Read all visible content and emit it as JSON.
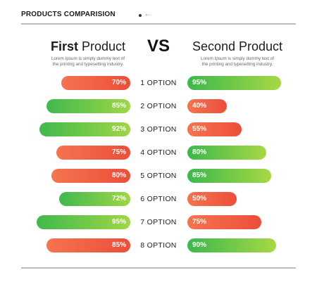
{
  "header": {
    "title": "PRODUCTS COMPARISION"
  },
  "vs_label": "VS",
  "first": {
    "title_bold": "First",
    "title_rest": "Product",
    "desc_line1": "Lorem Ipsum is simply dummy text of",
    "desc_line2": "the printing and typesetting industry."
  },
  "second": {
    "title": "Second Product",
    "desc_line1": "Lorem Ipsum is simply dummy text of",
    "desc_line2": "the printing and typesetting industry."
  },
  "colors": {
    "red_start": "#f5744f",
    "red_end": "#ec4e3a",
    "green_start": "#3cb84c",
    "green_end": "#a7d844",
    "green_start_left": "#40b94d",
    "green_end_left": "#9fd646"
  },
  "chart_data": {
    "type": "bar",
    "categories": [
      "1 OPTION",
      "2 OPTION",
      "3 OPTION",
      "4 OPTION",
      "5 OPTION",
      "6 OPTION",
      "7 OPTION",
      "8 OPTION"
    ],
    "series": [
      {
        "name": "First Product",
        "values": [
          70,
          85,
          92,
          75,
          80,
          72,
          95,
          85
        ],
        "labels": [
          "70%",
          "85%",
          "92%",
          "75%",
          "80%",
          "72%",
          "95%",
          "85%"
        ],
        "colors": [
          "red",
          "green",
          "green",
          "red",
          "red",
          "green",
          "green",
          "red"
        ]
      },
      {
        "name": "Second Product",
        "values": [
          95,
          40,
          55,
          80,
          85,
          50,
          75,
          90
        ],
        "labels": [
          "95%",
          "40%",
          "55%",
          "80%",
          "85%",
          "50%",
          "75%",
          "90%"
        ],
        "colors": [
          "green",
          "red",
          "red",
          "green",
          "green",
          "red",
          "red",
          "green"
        ]
      }
    ],
    "title": "PRODUCTS COMPARISION",
    "ylim": [
      0,
      100
    ]
  }
}
